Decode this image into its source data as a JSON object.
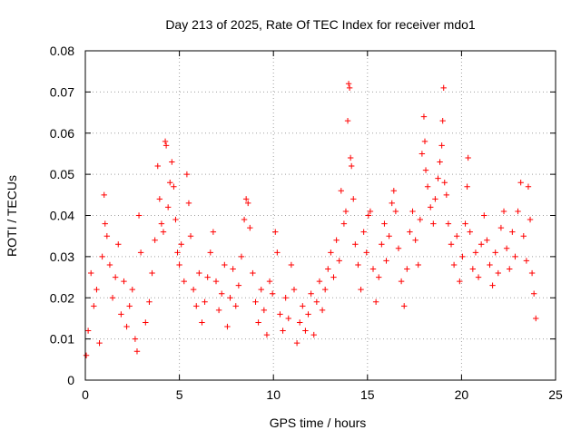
{
  "chart_data": {
    "type": "scatter",
    "title": "Day 213 of 2025, Rate Of TEC Index for receiver mdo1",
    "xlabel": "GPS time / hours",
    "ylabel": "ROTI / TECUs",
    "xlim": [
      0,
      25
    ],
    "ylim": [
      0,
      0.08
    ],
    "grid": true,
    "marker": "plus",
    "color": "#ff0000",
    "x_ticks": [
      0,
      5,
      10,
      15,
      20,
      25
    ],
    "x_tick_labels": [
      "0",
      "5",
      "10",
      "15",
      "20",
      "25"
    ],
    "y_ticks": [
      0,
      0.01,
      0.02,
      0.03,
      0.04,
      0.05,
      0.06,
      0.07,
      0.08
    ],
    "y_tick_labels": [
      "0",
      "0.01",
      "0.02",
      "0.03",
      "0.04",
      "0.05",
      "0.06",
      "0.07",
      "0.08"
    ],
    "series": [
      {
        "name": "ROTI",
        "points": [
          [
            0.05,
            0.006
          ],
          [
            0.15,
            0.012
          ],
          [
            0.3,
            0.026
          ],
          [
            0.45,
            0.018
          ],
          [
            0.6,
            0.022
          ],
          [
            0.75,
            0.009
          ],
          [
            0.9,
            0.03
          ],
          [
            1.0,
            0.045
          ],
          [
            1.05,
            0.038
          ],
          [
            1.15,
            0.035
          ],
          [
            1.3,
            0.028
          ],
          [
            1.45,
            0.02
          ],
          [
            1.6,
            0.025
          ],
          [
            1.75,
            0.033
          ],
          [
            1.9,
            0.016
          ],
          [
            2.05,
            0.024
          ],
          [
            2.2,
            0.013
          ],
          [
            2.35,
            0.018
          ],
          [
            2.5,
            0.022
          ],
          [
            2.65,
            0.01
          ],
          [
            2.75,
            0.007
          ],
          [
            2.85,
            0.04
          ],
          [
            2.95,
            0.031
          ],
          [
            3.2,
            0.014
          ],
          [
            3.4,
            0.019
          ],
          [
            3.55,
            0.026
          ],
          [
            3.7,
            0.034
          ],
          [
            3.85,
            0.052
          ],
          [
            3.95,
            0.044
          ],
          [
            4.05,
            0.038
          ],
          [
            4.15,
            0.036
          ],
          [
            4.25,
            0.058
          ],
          [
            4.3,
            0.057
          ],
          [
            4.4,
            0.042
          ],
          [
            4.5,
            0.048
          ],
          [
            4.6,
            0.053
          ],
          [
            4.7,
            0.047
          ],
          [
            4.8,
            0.039
          ],
          [
            4.9,
            0.031
          ],
          [
            5.0,
            0.028
          ],
          [
            5.1,
            0.033
          ],
          [
            5.25,
            0.024
          ],
          [
            5.4,
            0.05
          ],
          [
            5.5,
            0.043
          ],
          [
            5.6,
            0.035
          ],
          [
            5.75,
            0.022
          ],
          [
            5.9,
            0.018
          ],
          [
            6.05,
            0.026
          ],
          [
            6.2,
            0.014
          ],
          [
            6.35,
            0.019
          ],
          [
            6.5,
            0.025
          ],
          [
            6.65,
            0.031
          ],
          [
            6.8,
            0.036
          ],
          [
            6.95,
            0.024
          ],
          [
            7.1,
            0.017
          ],
          [
            7.25,
            0.021
          ],
          [
            7.4,
            0.028
          ],
          [
            7.55,
            0.013
          ],
          [
            7.7,
            0.02
          ],
          [
            7.85,
            0.027
          ],
          [
            8.0,
            0.018
          ],
          [
            8.15,
            0.023
          ],
          [
            8.3,
            0.03
          ],
          [
            8.45,
            0.039
          ],
          [
            8.55,
            0.044
          ],
          [
            8.65,
            0.043
          ],
          [
            8.75,
            0.037
          ],
          [
            8.9,
            0.026
          ],
          [
            9.05,
            0.019
          ],
          [
            9.2,
            0.014
          ],
          [
            9.35,
            0.022
          ],
          [
            9.5,
            0.017
          ],
          [
            9.65,
            0.011
          ],
          [
            9.8,
            0.024
          ],
          [
            9.95,
            0.021
          ],
          [
            10.1,
            0.036
          ],
          [
            10.2,
            0.031
          ],
          [
            10.35,
            0.016
          ],
          [
            10.5,
            0.012
          ],
          [
            10.65,
            0.02
          ],
          [
            10.8,
            0.015
          ],
          [
            10.95,
            0.028
          ],
          [
            11.1,
            0.022
          ],
          [
            11.25,
            0.009
          ],
          [
            11.4,
            0.014
          ],
          [
            11.55,
            0.018
          ],
          [
            11.7,
            0.012
          ],
          [
            11.85,
            0.016
          ],
          [
            12.0,
            0.021
          ],
          [
            12.15,
            0.011
          ],
          [
            12.3,
            0.019
          ],
          [
            12.45,
            0.024
          ],
          [
            12.6,
            0.017
          ],
          [
            12.75,
            0.022
          ],
          [
            12.9,
            0.027
          ],
          [
            13.05,
            0.031
          ],
          [
            13.2,
            0.025
          ],
          [
            13.35,
            0.034
          ],
          [
            13.5,
            0.029
          ],
          [
            13.6,
            0.046
          ],
          [
            13.75,
            0.038
          ],
          [
            13.85,
            0.041
          ],
          [
            13.95,
            0.063
          ],
          [
            14.0,
            0.072
          ],
          [
            14.05,
            0.071
          ],
          [
            14.1,
            0.054
          ],
          [
            14.15,
            0.052
          ],
          [
            14.25,
            0.044
          ],
          [
            14.35,
            0.033
          ],
          [
            14.5,
            0.028
          ],
          [
            14.65,
            0.022
          ],
          [
            14.8,
            0.036
          ],
          [
            14.95,
            0.031
          ],
          [
            15.05,
            0.04
          ],
          [
            15.15,
            0.041
          ],
          [
            15.3,
            0.027
          ],
          [
            15.45,
            0.019
          ],
          [
            15.6,
            0.025
          ],
          [
            15.75,
            0.033
          ],
          [
            15.9,
            0.038
          ],
          [
            16.0,
            0.029
          ],
          [
            16.15,
            0.035
          ],
          [
            16.3,
            0.043
          ],
          [
            16.4,
            0.046
          ],
          [
            16.5,
            0.041
          ],
          [
            16.65,
            0.032
          ],
          [
            16.8,
            0.024
          ],
          [
            16.95,
            0.018
          ],
          [
            17.1,
            0.027
          ],
          [
            17.25,
            0.036
          ],
          [
            17.4,
            0.041
          ],
          [
            17.55,
            0.034
          ],
          [
            17.7,
            0.028
          ],
          [
            17.8,
            0.039
          ],
          [
            17.9,
            0.055
          ],
          [
            18.0,
            0.064
          ],
          [
            18.05,
            0.058
          ],
          [
            18.1,
            0.051
          ],
          [
            18.2,
            0.047
          ],
          [
            18.35,
            0.042
          ],
          [
            18.5,
            0.038
          ],
          [
            18.6,
            0.044
          ],
          [
            18.75,
            0.049
          ],
          [
            18.85,
            0.053
          ],
          [
            18.95,
            0.057
          ],
          [
            19.0,
            0.063
          ],
          [
            19.05,
            0.071
          ],
          [
            19.1,
            0.048
          ],
          [
            19.2,
            0.045
          ],
          [
            19.3,
            0.038
          ],
          [
            19.45,
            0.033
          ],
          [
            19.6,
            0.028
          ],
          [
            19.75,
            0.035
          ],
          [
            19.9,
            0.024
          ],
          [
            20.05,
            0.03
          ],
          [
            20.2,
            0.038
          ],
          [
            20.3,
            0.047
          ],
          [
            20.35,
            0.054
          ],
          [
            20.45,
            0.036
          ],
          [
            20.6,
            0.027
          ],
          [
            20.75,
            0.031
          ],
          [
            20.9,
            0.025
          ],
          [
            21.05,
            0.033
          ],
          [
            21.2,
            0.04
          ],
          [
            21.35,
            0.034
          ],
          [
            21.5,
            0.028
          ],
          [
            21.65,
            0.023
          ],
          [
            21.8,
            0.031
          ],
          [
            21.95,
            0.026
          ],
          [
            22.1,
            0.037
          ],
          [
            22.25,
            0.041
          ],
          [
            22.4,
            0.032
          ],
          [
            22.55,
            0.027
          ],
          [
            22.7,
            0.036
          ],
          [
            22.85,
            0.03
          ],
          [
            23.0,
            0.041
          ],
          [
            23.15,
            0.048
          ],
          [
            23.3,
            0.035
          ],
          [
            23.45,
            0.029
          ],
          [
            23.55,
            0.047
          ],
          [
            23.65,
            0.039
          ],
          [
            23.75,
            0.026
          ],
          [
            23.85,
            0.021
          ],
          [
            23.95,
            0.015
          ]
        ]
      }
    ]
  }
}
